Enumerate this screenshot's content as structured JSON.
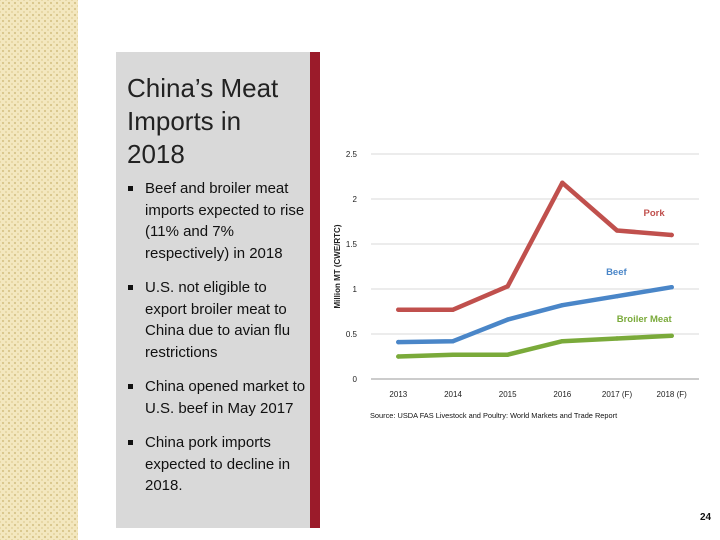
{
  "slide": {
    "title_line1": "China’s Meat",
    "title_line2": "Imports in 2018",
    "bullets": [
      "Beef and broiler meat imports expected to rise (11% and 7% respectively) in 2018",
      "U.S. not eligible to export broiler meat to China due to avian flu restrictions",
      "China opened market to U.S. beef in May 2017",
      "China pork imports expected to decline in 2018."
    ],
    "page_number": "24"
  },
  "colors": {
    "pork": "#c0504d",
    "beef": "#4a86c8",
    "broiler": "#7aaa3a",
    "accent_bar": "#9b1b2a"
  },
  "chart_data": {
    "type": "line",
    "title": "",
    "xlabel": "",
    "ylabel": "Million MT (CWE/RTC)",
    "categories": [
      "2013",
      "2014",
      "2015",
      "2016",
      "2017 (F)",
      "2018 (F)"
    ],
    "ylim": [
      0,
      2.5
    ],
    "yticks": [
      0,
      0.5,
      1,
      1.5,
      2,
      2.5
    ],
    "ytick_labels": [
      "0",
      "0.5",
      "1",
      "1.5",
      "2",
      "2.5"
    ],
    "grid": true,
    "series": [
      {
        "name": "Pork",
        "color": "#c0504d",
        "values": [
          0.77,
          0.77,
          1.03,
          2.18,
          1.65,
          1.6
        ]
      },
      {
        "name": "Beef",
        "color": "#4a86c8",
        "values": [
          0.41,
          0.42,
          0.66,
          0.82,
          0.92,
          1.02
        ]
      },
      {
        "name": "Broiler Meat",
        "color": "#7aaa3a",
        "values": [
          0.25,
          0.27,
          0.27,
          0.42,
          0.45,
          0.48
        ]
      }
    ],
    "source": "Source:  USDA FAS Livestock and Poultry: World Markets and Trade Report"
  }
}
